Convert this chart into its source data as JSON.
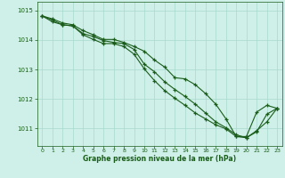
{
  "background_color": "#cef0e8",
  "grid_color": "#a8d8ce",
  "line_color": "#1a5c1a",
  "marker_color": "#1a5c1a",
  "xlabel": "Graphe pression niveau de la mer (hPa)",
  "xlabel_color": "#1a5c1a",
  "tick_color": "#1a5c1a",
  "xlim": [
    -0.5,
    23.5
  ],
  "ylim": [
    1010.4,
    1015.3
  ],
  "yticks": [
    1011,
    1012,
    1013,
    1014,
    1015
  ],
  "xticks": [
    0,
    1,
    2,
    3,
    4,
    5,
    6,
    7,
    8,
    9,
    10,
    11,
    12,
    13,
    14,
    15,
    16,
    17,
    18,
    19,
    20,
    21,
    22,
    23
  ],
  "series": [
    [
      1014.82,
      1014.72,
      1014.58,
      1014.52,
      1014.32,
      1014.18,
      1014.02,
      1014.02,
      1013.92,
      1013.78,
      1013.62,
      1013.32,
      1013.08,
      1012.72,
      1012.68,
      1012.48,
      1012.18,
      1011.82,
      1011.32,
      1010.72,
      1010.72,
      1011.55,
      1011.78,
      1011.68
    ],
    [
      1014.82,
      1014.68,
      1014.52,
      1014.48,
      1014.22,
      1014.12,
      1013.98,
      1013.92,
      1013.88,
      1013.68,
      1013.18,
      1012.92,
      1012.58,
      1012.32,
      1012.08,
      1011.82,
      1011.52,
      1011.22,
      1011.02,
      1010.78,
      1010.68,
      1010.88,
      1011.48,
      1011.68
    ],
    [
      1014.82,
      1014.62,
      1014.52,
      1014.48,
      1014.18,
      1014.02,
      1013.88,
      1013.88,
      1013.78,
      1013.52,
      1013.02,
      1012.62,
      1012.28,
      1012.02,
      1011.78,
      1011.52,
      1011.32,
      1011.12,
      1010.98,
      1010.72,
      1010.68,
      1010.92,
      1011.22,
      1011.68
    ]
  ]
}
